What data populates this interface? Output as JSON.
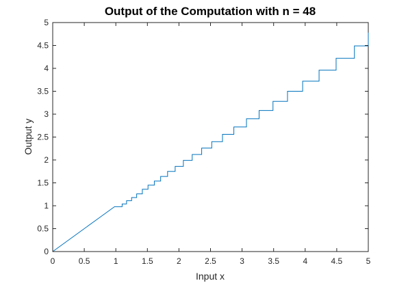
{
  "chart_data": {
    "type": "line",
    "title": "Output of the Computation with n = 48",
    "xlabel": "Input x",
    "ylabel": "Output y",
    "xlim": [
      0,
      5
    ],
    "ylim": [
      0,
      5
    ],
    "xticks": [
      "0",
      "0.5",
      "1",
      "1.5",
      "2",
      "2.5",
      "3",
      "3.5",
      "4",
      "4.5",
      "5"
    ],
    "yticks": [
      "0",
      "0.5",
      "1",
      "1.5",
      "2",
      "2.5",
      "3",
      "3.5",
      "4",
      "4.5",
      "5"
    ],
    "grid": false,
    "box": true,
    "series": [
      {
        "style": "step",
        "color": "#0072bd",
        "x": [
          0,
          0.25,
          0.5,
          0.75,
          0.98,
          1.1,
          1.17,
          1.25,
          1.33,
          1.42,
          1.51,
          1.61,
          1.71,
          1.82,
          1.94,
          2.07,
          2.21,
          2.36,
          2.52,
          2.69,
          2.87,
          3.07,
          3.27,
          3.49,
          3.72,
          3.96,
          4.22,
          4.49,
          4.78,
          5.0
        ],
        "y": [
          0,
          0.25,
          0.5,
          0.75,
          0.98,
          1.04,
          1.11,
          1.18,
          1.26,
          1.36,
          1.45,
          1.54,
          1.64,
          1.75,
          1.86,
          1.99,
          2.12,
          2.26,
          2.4,
          2.56,
          2.72,
          2.9,
          3.08,
          3.28,
          3.5,
          3.72,
          3.96,
          4.22,
          4.49,
          4.78
        ]
      }
    ]
  }
}
